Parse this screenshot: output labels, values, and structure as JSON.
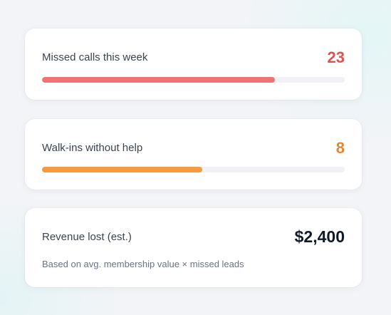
{
  "colors": {
    "missed_value": "#e05252",
    "missed_bar": "#f07373",
    "walkins_value": "#e8842b",
    "walkins_bar": "#f59a3e"
  },
  "metrics": {
    "missed_calls": {
      "label": "Missed calls this week",
      "value": "23",
      "progress_percent": 77
    },
    "walk_ins": {
      "label": "Walk-ins without help",
      "value": "8",
      "progress_percent": 53
    },
    "revenue_lost": {
      "label": "Revenue lost (est.)",
      "value": "$2,400",
      "note": "Based on avg. membership value × missed leads"
    }
  }
}
